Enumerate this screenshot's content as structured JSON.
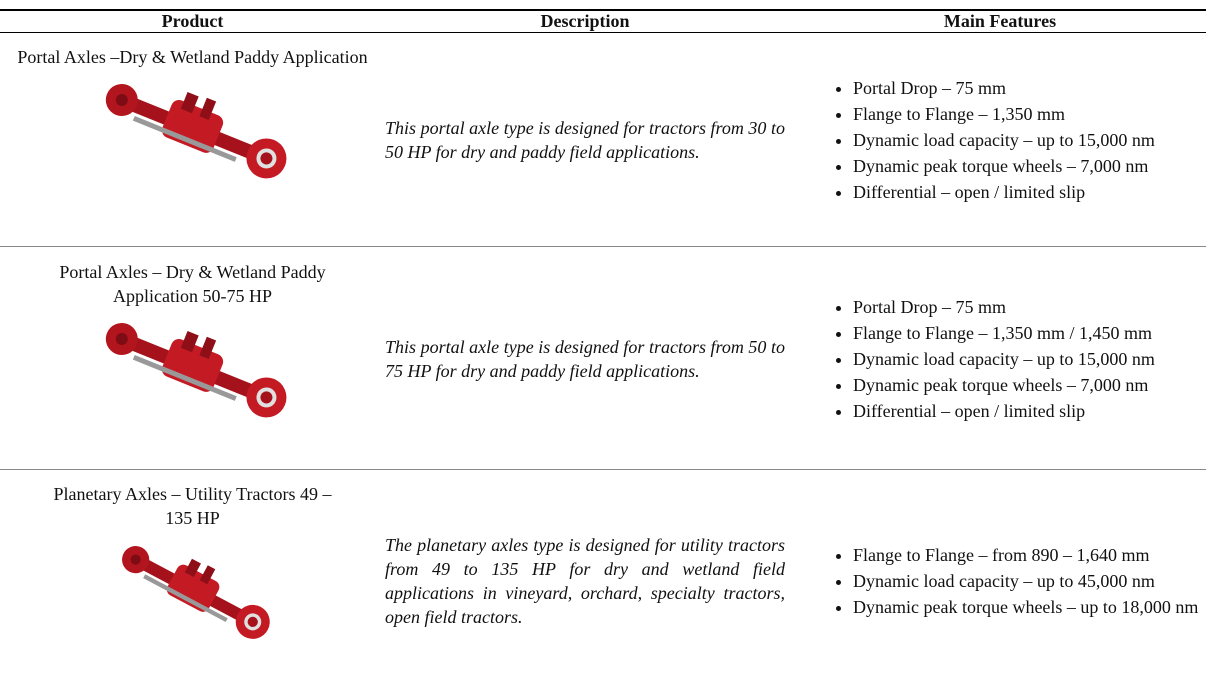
{
  "table": {
    "header": [
      "Product",
      "Description",
      "Main Features"
    ],
    "rows": [
      {
        "product": "Portal Axles –Dry & Wetland Paddy Application",
        "description": "This portal axle type is designed for tractors from 30 to 50 HP for dry and paddy field applications.",
        "features": [
          "Portal Drop – 75 mm",
          "Flange to Flange – 1,350 mm",
          "Dynamic load capacity – up to 15,000 nm",
          "Dynamic peak torque wheels – 7,000 nm",
          "Differential – open / limited slip"
        ]
      },
      {
        "product": "Portal Axles – Dry & Wetland Paddy Application 50-75 HP",
        "description": "This portal axle type is designed for tractors from 50 to 75 HP for dry and paddy field applications.",
        "features": [
          "Portal Drop – 75 mm",
          "Flange to Flange – 1,350 mm / 1,450 mm",
          "Dynamic load capacity – up to 15,000 nm",
          "Dynamic peak torque wheels – 7,000 nm",
          "Differential – open / limited slip"
        ]
      },
      {
        "product": "Planetary Axles – Utility Tractors 49 –135 HP",
        "description": "The planetary axles type is designed for utility tractors from 49 to 135 HP for dry and wetland field applications in vineyard, orchard, specialty tractors, open field tractors.",
        "features": [
          "Flange to Flange – from 890 – 1,640 mm",
          "Dynamic load capacity – up to 45,000 nm",
          "Dynamic peak torque wheels – up to 18,000 nm"
        ]
      }
    ]
  }
}
